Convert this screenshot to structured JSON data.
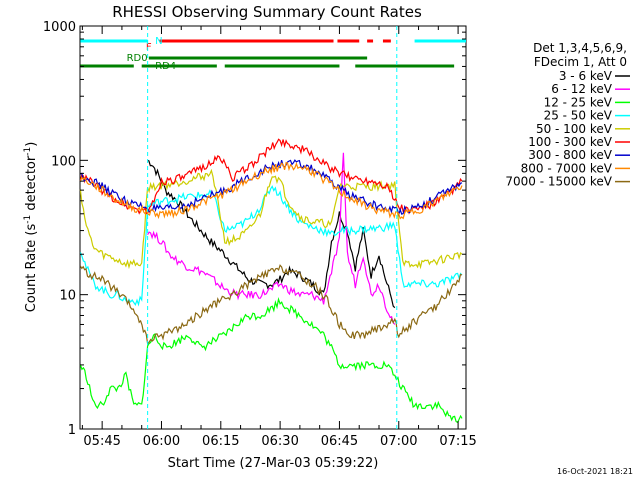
{
  "chart_data": {
    "type": "line",
    "title": "RHESSI Observing Summary Count Rates",
    "xlabel": "Start Time (27-Mar-03 05:39:22)",
    "ylabel_main": "Count Rate (s",
    "ylabel_sup": "-1",
    "ylabel_tail": " detector",
    "ylabel_sup2": "-1",
    "ylabel_close": ")",
    "yscale": "log",
    "ylim": [
      1,
      1000
    ],
    "xlim_minutes": [
      339.4,
      437.0
    ],
    "x_ticks": [
      {
        "minute": 345,
        "label": "05:45"
      },
      {
        "minute": 360,
        "label": "06:00"
      },
      {
        "minute": 375,
        "label": "06:15"
      },
      {
        "minute": 390,
        "label": "06:30"
      },
      {
        "minute": 405,
        "label": "06:45"
      },
      {
        "minute": 420,
        "label": "07:00"
      },
      {
        "minute": 435,
        "label": "07:15"
      }
    ],
    "y_ticks": [
      {
        "value": 1,
        "label": "1"
      },
      {
        "value": 10,
        "label": "10"
      },
      {
        "value": 100,
        "label": "100"
      },
      {
        "value": 1000,
        "label": "1000"
      }
    ],
    "legend_header": [
      "Det 1,3,4,5,6,9,",
      "FDecim 1, Att 0"
    ],
    "series": [
      {
        "name": "3 - 6 keV",
        "color": "#000000",
        "x": [
          356.5,
          357.5,
          359,
          361,
          364,
          367,
          370,
          373,
          376,
          379,
          382,
          385,
          388,
          390,
          392,
          395,
          398,
          401,
          403,
          405,
          407,
          409,
          411,
          413,
          415,
          417,
          419
        ],
        "y": [
          100,
          95,
          80,
          60,
          50,
          38,
          30,
          24,
          20,
          16,
          13,
          12,
          12,
          13,
          15,
          14,
          12,
          10,
          25,
          40,
          30,
          16,
          30,
          14,
          20,
          12,
          8
        ]
      },
      {
        "name": "6 - 12 keV",
        "color": "#ff00ff",
        "x": [
          356.5,
          358,
          360,
          362,
          364,
          367,
          370,
          373,
          376,
          379,
          382,
          385,
          388,
          390,
          392,
          395,
          398,
          401,
          403,
          405,
          406,
          407,
          409,
          411,
          413,
          415,
          417,
          419
        ],
        "y": [
          30,
          28,
          25,
          20,
          18,
          16,
          15,
          13,
          11,
          10,
          10,
          10,
          11,
          12,
          11,
          10,
          10,
          9,
          15,
          25,
          120,
          20,
          12,
          20,
          10,
          12,
          8,
          6
        ]
      },
      {
        "name": "12 - 25 keV",
        "color": "#00ff00",
        "x": [
          339.5,
          341,
          343,
          345,
          347,
          349,
          351,
          353,
          355,
          356.5,
          358,
          361,
          364,
          367,
          370,
          373,
          376,
          379,
          382,
          385,
          388,
          390,
          392,
          395,
          398,
          401,
          403,
          405,
          408,
          411,
          414,
          417,
          419,
          421,
          424,
          427,
          430,
          433,
          436
        ],
        "y": [
          3,
          2.5,
          1.5,
          1.5,
          2,
          2,
          2.5,
          1.5,
          1.5,
          4,
          5,
          4,
          4.5,
          5,
          4,
          4.5,
          5,
          6,
          7,
          7,
          8,
          9,
          8,
          7,
          6,
          5,
          4,
          3,
          3,
          3,
          3,
          3,
          2.5,
          2,
          1.5,
          1.5,
          1.5,
          1.2,
          1.2
        ]
      },
      {
        "name": "25 - 50 keV",
        "color": "#00ffff",
        "x": [
          339.5,
          341,
          343,
          345,
          347,
          349,
          351,
          353,
          355,
          356.5,
          358,
          361,
          364,
          367,
          370,
          373,
          376,
          379,
          382,
          385,
          388,
          390,
          392,
          395,
          398,
          401,
          403,
          405,
          408,
          411,
          414,
          417,
          419,
          421,
          424,
          427,
          430,
          433,
          436
        ],
        "y": [
          22,
          16,
          12,
          11,
          10,
          10,
          9,
          9,
          9,
          45,
          48,
          50,
          52,
          54,
          55,
          56,
          30,
          32,
          36,
          45,
          65,
          55,
          45,
          35,
          32,
          30,
          28,
          30,
          30,
          31,
          31,
          32,
          33,
          12,
          12,
          12,
          12,
          13,
          14
        ]
      },
      {
        "name": "50 - 100 keV",
        "color": "#cccc00",
        "x": [
          339.5,
          341,
          343,
          345,
          347,
          349,
          351,
          353,
          355,
          356.5,
          358,
          361,
          364,
          367,
          370,
          373,
          376,
          379,
          382,
          385,
          388,
          390,
          392,
          395,
          398,
          401,
          403,
          405,
          408,
          411,
          414,
          417,
          419,
          421,
          424,
          427,
          430,
          433,
          436
        ],
        "y": [
          60,
          32,
          22,
          20,
          19,
          18,
          17,
          17,
          17,
          62,
          64,
          66,
          68,
          72,
          76,
          80,
          25,
          26,
          30,
          40,
          80,
          70,
          50,
          38,
          35,
          34,
          33,
          65,
          64,
          64,
          64,
          65,
          66,
          17,
          17,
          17,
          18,
          19,
          20
        ]
      },
      {
        "name": "100 - 300 keV",
        "color": "#ff0000",
        "x": [
          339.5,
          342,
          345,
          348,
          351,
          354,
          357,
          360,
          363,
          366,
          369,
          372,
          375,
          378,
          381,
          384,
          387,
          390,
          393,
          396,
          399,
          402,
          405,
          408,
          411,
          414,
          417,
          420,
          423,
          426,
          429,
          432,
          434,
          436
        ],
        "y": [
          75,
          70,
          60,
          52,
          46,
          43,
          42,
          70,
          72,
          75,
          85,
          95,
          105,
          75,
          85,
          100,
          120,
          140,
          130,
          120,
          105,
          90,
          80,
          75,
          72,
          70,
          65,
          45,
          42,
          45,
          48,
          55,
          62,
          70
        ]
      },
      {
        "name": "300 - 800 keV",
        "color": "#0000cc",
        "x": [
          339.5,
          342,
          345,
          348,
          351,
          354,
          357,
          360,
          363,
          366,
          369,
          372,
          375,
          378,
          381,
          384,
          387,
          390,
          393,
          396,
          399,
          402,
          405,
          408,
          411,
          414,
          417,
          420,
          423,
          426,
          429,
          432,
          434,
          436
        ],
        "y": [
          78,
          72,
          64,
          56,
          50,
          46,
          44,
          43,
          44,
          46,
          50,
          54,
          58,
          64,
          72,
          80,
          88,
          94,
          95,
          92,
          84,
          72,
          62,
          55,
          50,
          46,
          44,
          42,
          44,
          47,
          52,
          58,
          63,
          68
        ]
      },
      {
        "name": "800 - 7000 keV",
        "color": "#ff8800",
        "x": [
          339.5,
          342,
          345,
          348,
          351,
          354,
          357,
          360,
          363,
          366,
          369,
          372,
          375,
          378,
          381,
          384,
          387,
          390,
          393,
          396,
          399,
          402,
          405,
          408,
          411,
          414,
          417,
          420,
          423,
          426,
          429,
          432,
          434,
          436
        ],
        "y": [
          74,
          68,
          60,
          52,
          47,
          43,
          41,
          40,
          41,
          43,
          47,
          51,
          55,
          61,
          69,
          77,
          85,
          90,
          91,
          88,
          80,
          69,
          59,
          52,
          47,
          43,
          41,
          39,
          41,
          44,
          49,
          55,
          60,
          65
        ]
      },
      {
        "name": "7000 - 15000 keV",
        "color": "#8b6914",
        "x": [
          339.5,
          342,
          345,
          348,
          351,
          354,
          356.5,
          360,
          363,
          366,
          369,
          372,
          375,
          378,
          381,
          384,
          387,
          390,
          393,
          396,
          399,
          402,
          405,
          408,
          411,
          414,
          417,
          419,
          420,
          423,
          426,
          429,
          432,
          434,
          436
        ],
        "y": [
          16,
          14,
          13,
          11,
          9,
          7,
          4.5,
          5,
          5.5,
          6,
          7,
          8,
          9,
          10,
          11.5,
          13,
          14.5,
          15.5,
          15,
          13,
          11.5,
          9,
          6,
          5,
          5,
          5.5,
          6,
          6.5,
          5,
          6,
          7,
          8,
          10,
          12,
          14
        ]
      }
    ],
    "status_flags": [
      {
        "label": "N",
        "label_color": "#00ffff",
        "row": "top",
        "segments": [
          [
            339.5,
            356.5
          ],
          [
            424,
            437
          ]
        ],
        "color": "#00ffff"
      },
      {
        "label": "F",
        "label_color": "#ff0000",
        "row": "top",
        "segments": [
          [
            359.5,
            403.5
          ],
          [
            404.5,
            410
          ],
          [
            412,
            413.5
          ],
          [
            416,
            418
          ]
        ],
        "color": "#ff0000"
      },
      {
        "label": "RD0",
        "label_color": "#008000",
        "row": "mid",
        "segments": [
          [
            356.8,
            412
          ]
        ],
        "color": "#008000"
      },
      {
        "label": "RD4",
        "label_color": "#008000",
        "row": "low",
        "segments": [
          [
            339.5,
            353
          ],
          [
            355,
            374
          ],
          [
            376,
            405
          ],
          [
            409,
            434
          ]
        ],
        "color": "#008000"
      }
    ],
    "eclipse_lines_minutes": [
      356.5,
      419.5
    ],
    "timestamp_stamp": "16-Oct-2021 18:21"
  }
}
